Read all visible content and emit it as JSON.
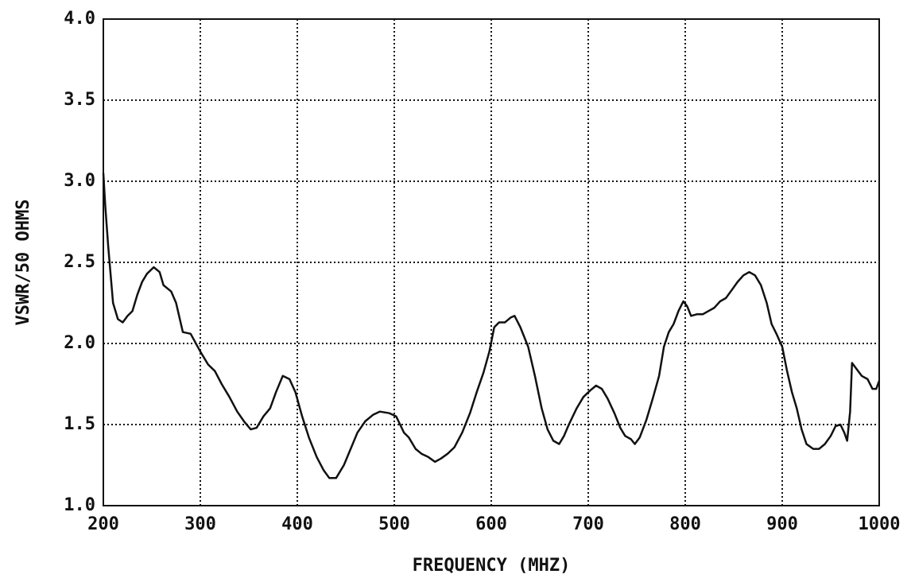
{
  "chart_data": {
    "type": "line",
    "xlabel": "FREQUENCY (MHZ)",
    "ylabel": "VSWR/50 OHMS",
    "color": "#111111",
    "grid": true,
    "xlim": [
      200,
      1000
    ],
    "xticks": [
      200,
      300,
      400,
      500,
      600,
      700,
      800,
      900,
      1000
    ],
    "ylim": [
      1,
      4
    ],
    "yticks": [
      {
        "value": 1,
        "label": "1.0"
      },
      1.5,
      {
        "value": 2,
        "label": "2.0"
      },
      2.5,
      {
        "value": 3,
        "label": "3.0"
      },
      3.5,
      {
        "value": 4,
        "label": "4.0"
      }
    ],
    "x": [
      200,
      202,
      205,
      210,
      215,
      220,
      225,
      230,
      235,
      240,
      245,
      252,
      258,
      262,
      270,
      275,
      282,
      290,
      300,
      308,
      315,
      322,
      330,
      338,
      345,
      352,
      358,
      365,
      372,
      378,
      385,
      392,
      398,
      405,
      412,
      420,
      427,
      433,
      440,
      448,
      455,
      462,
      470,
      478,
      485,
      495,
      502,
      510,
      515,
      522,
      528,
      535,
      542,
      548,
      555,
      562,
      570,
      578,
      585,
      592,
      598,
      603,
      608,
      614,
      620,
      624,
      630,
      638,
      645,
      652,
      658,
      664,
      670,
      675,
      680,
      688,
      695,
      702,
      708,
      714,
      720,
      727,
      733,
      738,
      744,
      748,
      753,
      760,
      767,
      773,
      778,
      783,
      788,
      793,
      798,
      802,
      806,
      812,
      818,
      824,
      830,
      836,
      842,
      848,
      854,
      860,
      866,
      872,
      878,
      884,
      889,
      894,
      900,
      905,
      910,
      915,
      920,
      925,
      932,
      938,
      944,
      950,
      955,
      960,
      964,
      967,
      970,
      972,
      977,
      982,
      988,
      993,
      997,
      1000
    ],
    "values": [
      3.05,
      2.85,
      2.6,
      2.25,
      2.15,
      2.13,
      2.17,
      2.2,
      2.3,
      2.38,
      2.43,
      2.47,
      2.44,
      2.36,
      2.32,
      2.25,
      2.07,
      2.06,
      1.95,
      1.87,
      1.83,
      1.75,
      1.67,
      1.58,
      1.52,
      1.47,
      1.48,
      1.55,
      1.6,
      1.7,
      1.8,
      1.78,
      1.7,
      1.55,
      1.42,
      1.3,
      1.22,
      1.17,
      1.17,
      1.25,
      1.35,
      1.45,
      1.52,
      1.56,
      1.58,
      1.57,
      1.55,
      1.45,
      1.42,
      1.35,
      1.32,
      1.3,
      1.27,
      1.29,
      1.32,
      1.36,
      1.45,
      1.57,
      1.7,
      1.82,
      1.95,
      2.1,
      2.13,
      2.13,
      2.16,
      2.17,
      2.1,
      1.98,
      1.8,
      1.6,
      1.47,
      1.4,
      1.38,
      1.43,
      1.5,
      1.6,
      1.67,
      1.71,
      1.74,
      1.72,
      1.66,
      1.57,
      1.48,
      1.43,
      1.41,
      1.38,
      1.42,
      1.53,
      1.67,
      1.8,
      1.98,
      2.07,
      2.12,
      2.2,
      2.26,
      2.23,
      2.17,
      2.18,
      2.18,
      2.2,
      2.22,
      2.26,
      2.28,
      2.33,
      2.38,
      2.42,
      2.44,
      2.42,
      2.36,
      2.25,
      2.12,
      2.06,
      1.98,
      1.83,
      1.7,
      1.6,
      1.47,
      1.38,
      1.35,
      1.35,
      1.38,
      1.43,
      1.49,
      1.5,
      1.45,
      1.4,
      1.58,
      1.88,
      1.84,
      1.8,
      1.78,
      1.72,
      1.72,
      1.77
    ]
  }
}
